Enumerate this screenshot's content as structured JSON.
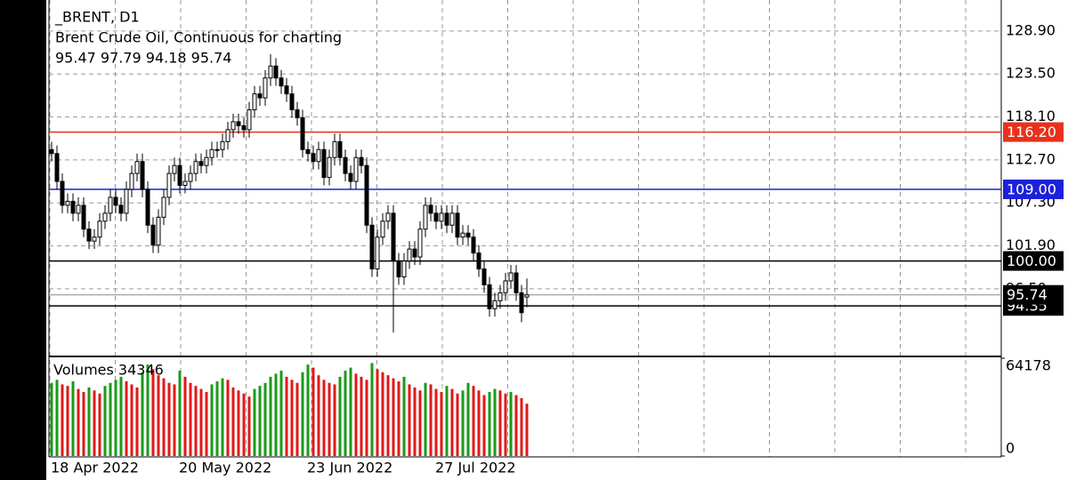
{
  "chart_data": [
    {
      "type": "candlestick",
      "title": "_BRENT, D1",
      "subtitle": "Brent Crude Oil, Continuous for charting",
      "ohlc_label": "95.47 97.79 94.18 95.74",
      "categories": [
        "18 Apr 2022",
        null,
        null,
        null,
        null,
        null,
        null,
        null,
        null,
        null,
        null,
        null,
        null,
        null,
        null,
        null,
        null,
        null,
        null,
        null,
        null,
        null,
        null,
        null,
        "20 May 2022",
        null,
        null,
        null,
        null,
        null,
        null,
        null,
        null,
        null,
        null,
        null,
        null,
        null,
        null,
        null,
        null,
        null,
        null,
        null,
        null,
        null,
        null,
        null,
        "23 Jun 2022",
        null,
        null,
        null,
        null,
        null,
        null,
        null,
        null,
        null,
        null,
        null,
        null,
        null,
        null,
        null,
        null,
        null,
        null,
        null,
        null,
        null,
        null,
        null,
        "27 Jul 2022",
        null,
        null,
        null,
        null,
        null,
        null,
        null,
        null,
        null,
        null,
        null,
        null,
        null,
        null,
        null,
        null,
        null
      ],
      "open": [
        114,
        113.5,
        110,
        107,
        107.5,
        106,
        107,
        104,
        102.5,
        103,
        105,
        106,
        108,
        107,
        106,
        109,
        111,
        112.5,
        109,
        104.5,
        102,
        105.5,
        108,
        111,
        112,
        109.5,
        110,
        111,
        112.5,
        112,
        113,
        114,
        114,
        115,
        116.5,
        117.5,
        117,
        116.5,
        119,
        121,
        120.5,
        123,
        124.5,
        123,
        122,
        121,
        119,
        118,
        114,
        113.5,
        112.5,
        114,
        110.5,
        113,
        115,
        113,
        111,
        110,
        113,
        112,
        104.5,
        99,
        103,
        105,
        106,
        100,
        98,
        100,
        101.5,
        100.5,
        104,
        107,
        106,
        105,
        106,
        104.5,
        106,
        103,
        103.5,
        103,
        101,
        99,
        97,
        94,
        95,
        96,
        97.5,
        98.5,
        96,
        95.47
      ],
      "high": [
        115,
        114.5,
        111,
        108.5,
        108.5,
        108,
        108,
        105,
        104,
        106,
        107,
        109,
        109,
        108,
        110,
        112,
        113.5,
        113.5,
        110,
        105.5,
        106.5,
        109,
        112,
        113,
        113,
        111,
        112,
        113.5,
        113.5,
        114,
        115,
        115,
        116,
        117.5,
        118.5,
        118.5,
        118,
        120,
        122,
        122,
        124,
        126,
        125.5,
        124,
        123,
        122,
        120,
        119,
        115,
        114.5,
        115,
        115,
        114,
        116,
        116,
        114,
        112,
        114,
        114,
        113,
        105.5,
        104,
        106,
        107,
        107,
        101,
        101,
        102.5,
        102.5,
        105,
        108,
        108,
        107,
        107,
        107,
        107,
        107,
        104.5,
        104.5,
        104,
        102,
        100,
        98,
        96,
        97,
        98.5,
        99.5,
        99.5,
        97,
        97.79
      ],
      "low": [
        112.5,
        109,
        106,
        106,
        105,
        105,
        103,
        101.5,
        101.5,
        102,
        104,
        105,
        106,
        105,
        105,
        108,
        110,
        108,
        103.5,
        101,
        101,
        104.5,
        107,
        110,
        108.5,
        108.5,
        109,
        110,
        111,
        111,
        112,
        113,
        113,
        114,
        115.5,
        116,
        115.5,
        115.5,
        118,
        119.5,
        119.5,
        122,
        122,
        121,
        120,
        118,
        117,
        113,
        112.5,
        111.5,
        111.5,
        109.5,
        109.5,
        112,
        112,
        110,
        109,
        109,
        111,
        103.5,
        98,
        98,
        102,
        104,
        91,
        97,
        97,
        99,
        99.5,
        99.5,
        103,
        105,
        104,
        104,
        103.5,
        103.5,
        102,
        102,
        102,
        100,
        98,
        96,
        93,
        93,
        94,
        95,
        96.5,
        95,
        92.3,
        94.18
      ],
      "close": [
        113.5,
        110,
        107,
        107.5,
        106,
        107,
        104,
        102.5,
        103,
        105,
        106,
        108,
        107,
        106,
        109,
        111,
        112.5,
        109,
        104.5,
        102,
        105.5,
        108,
        111,
        112,
        109.5,
        110,
        111,
        112.5,
        112,
        113,
        114,
        114,
        115,
        116.5,
        117.5,
        117,
        116.5,
        119,
        121,
        120.5,
        123,
        124.5,
        123,
        122,
        121,
        119,
        118,
        114,
        113.5,
        112.5,
        114,
        110.5,
        113,
        115,
        113,
        111,
        110,
        113,
        112,
        104.5,
        99,
        103,
        105,
        106,
        100,
        98,
        100,
        101.5,
        100.5,
        104,
        107,
        106,
        105,
        106,
        104.5,
        106,
        103,
        103.5,
        103,
        101,
        99,
        97,
        94,
        95,
        96,
        97.5,
        98.5,
        96,
        93.5,
        95.74
      ],
      "levels": [
        {
          "value": 116.2,
          "label": "116.20",
          "color": "#e8311c"
        },
        {
          "value": 109,
          "label": "109.00",
          "color": "#1c22d8"
        },
        {
          "value": 100,
          "label": "100.00",
          "color": "#000000"
        },
        {
          "value": 94.35,
          "label": "94.35",
          "color": "#000000"
        }
      ],
      "ylim": [
        88.0,
        132.8
      ],
      "yticks": [
        {
          "value": 128.9,
          "label": "128.90"
        },
        {
          "value": 123.5,
          "label": "123.50"
        },
        {
          "value": 118.1,
          "label": "118.10"
        },
        {
          "value": 112.7,
          "label": "112.70"
        },
        {
          "value": 107.3,
          "label": "107.30"
        },
        {
          "value": 101.9,
          "label": "101.90"
        },
        {
          "value": 96.5,
          "label": "96.50"
        }
      ],
      "grid": true
    },
    {
      "type": "bar",
      "title": "Volumes 34346",
      "up_color": "#1a9a1a",
      "down_color": "#e01818",
      "values": [
        48000,
        50000,
        47000,
        46000,
        49000,
        44000,
        42000,
        45000,
        43000,
        41000,
        46000,
        48000,
        50000,
        52000,
        49000,
        47000,
        45000,
        55000,
        60000,
        57000,
        53000,
        51000,
        48000,
        47000,
        56000,
        52000,
        48000,
        46000,
        44000,
        42000,
        47000,
        49000,
        51000,
        50000,
        45000,
        43000,
        41000,
        39000,
        44000,
        46000,
        48000,
        52000,
        54000,
        56000,
        52000,
        50000,
        48000,
        55000,
        60000,
        58000,
        53000,
        50000,
        48000,
        47000,
        52000,
        56000,
        58000,
        54000,
        52000,
        50000,
        61000,
        57000,
        55000,
        53000,
        51000,
        49000,
        52000,
        47000,
        45000,
        43000,
        48000,
        47000,
        44000,
        42000,
        46000,
        44000,
        41000,
        43000,
        48000,
        46000,
        43000,
        40000,
        42000,
        44000,
        43000,
        41000,
        42000,
        40000,
        38000,
        34346
      ],
      "ylim": [
        0,
        64178
      ],
      "yticks": [
        64178,
        0
      ]
    }
  ]
}
